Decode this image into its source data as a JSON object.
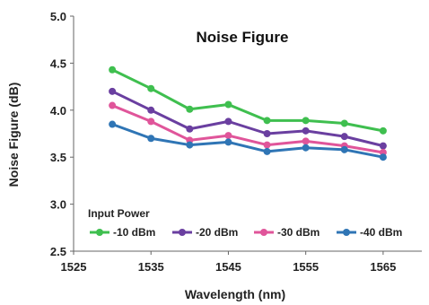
{
  "chart_data": {
    "type": "line",
    "title": "Noise Figure",
    "xlabel": "Wavelength (nm)",
    "ylabel": "Noise Figure (dB)",
    "xlim": [
      1525,
      1570
    ],
    "ylim": [
      2.5,
      5.0
    ],
    "xticks": [
      "1525",
      "1535",
      "1545",
      "1555",
      "1565"
    ],
    "yticks": [
      "2.5",
      "3.0",
      "3.5",
      "4.0",
      "4.5",
      "5.0"
    ],
    "grid": false,
    "legend": {
      "title": "Input Power",
      "placement": "bottom"
    },
    "x": [
      1530,
      1535,
      1540,
      1545,
      1550,
      1555,
      1560,
      1565
    ],
    "series": [
      {
        "name": "-10 dBm",
        "color": "#3fbf4f",
        "values": [
          4.43,
          4.23,
          4.01,
          4.06,
          3.89,
          3.89,
          3.86,
          3.78
        ]
      },
      {
        "name": "-20 dBm",
        "color": "#6a3fa0",
        "values": [
          4.2,
          4.0,
          3.8,
          3.88,
          3.75,
          3.78,
          3.72,
          3.62
        ]
      },
      {
        "name": "-30 dBm",
        "color": "#e0559a",
        "values": [
          4.05,
          3.88,
          3.68,
          3.73,
          3.63,
          3.67,
          3.62,
          3.55
        ]
      },
      {
        "name": "-40 dBm",
        "color": "#2f75b5",
        "values": [
          3.85,
          3.7,
          3.63,
          3.66,
          3.56,
          3.6,
          3.58,
          3.5
        ]
      }
    ]
  }
}
